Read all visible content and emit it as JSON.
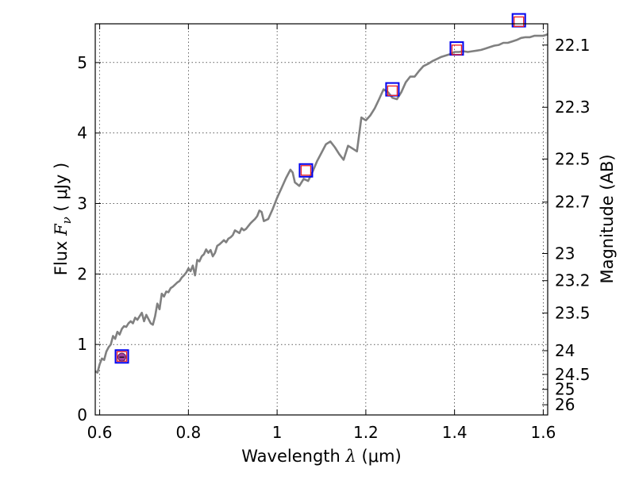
{
  "chart_data": {
    "type": "line",
    "xlabel": {
      "prefix": "Wavelength  ",
      "symbol": "λ",
      "suffix": " (μm)"
    },
    "ylabel": {
      "prefix": "Flux  ",
      "symbol": "F",
      "subscript": "ν",
      "suffix": "  ( μJy )"
    },
    "y2label": "Magnitude (AB)",
    "xlim": [
      0.59,
      1.61
    ],
    "ylim": [
      0,
      5.55
    ],
    "grid": true,
    "x_ticks": [
      {
        "value": 0.6,
        "label": "0.6"
      },
      {
        "value": 0.8,
        "label": "0.8"
      },
      {
        "value": 1.0,
        "label": "1"
      },
      {
        "value": 1.2,
        "label": "1.2"
      },
      {
        "value": 1.4,
        "label": "1.4"
      },
      {
        "value": 1.6,
        "label": "1.6"
      }
    ],
    "y_ticks": [
      {
        "value": 0,
        "label": "0"
      },
      {
        "value": 1,
        "label": "1"
      },
      {
        "value": 2,
        "label": "2"
      },
      {
        "value": 3,
        "label": "3"
      },
      {
        "value": 4,
        "label": "4"
      },
      {
        "value": 5,
        "label": "5"
      }
    ],
    "magnitude_ticks": [
      {
        "value": 22.1,
        "label": "22.1"
      },
      {
        "value": 22.3,
        "label": "22.3"
      },
      {
        "value": 22.5,
        "label": "22.5"
      },
      {
        "value": 22.7,
        "label": "22.7"
      },
      {
        "value": 23.0,
        "label": "23"
      },
      {
        "value": 23.2,
        "label": "23.2"
      },
      {
        "value": 23.5,
        "label": "23.5"
      },
      {
        "value": 24.0,
        "label": "24"
      },
      {
        "value": 24.5,
        "label": "24.5"
      },
      {
        "value": 25.0,
        "label": "25"
      },
      {
        "value": 26.0,
        "label": "26"
      }
    ],
    "series": [
      {
        "type": "line",
        "color": "#808080",
        "x": [
          0.59,
          0.595,
          0.6,
          0.605,
          0.61,
          0.615,
          0.62,
          0.625,
          0.63,
          0.635,
          0.64,
          0.645,
          0.65,
          0.655,
          0.66,
          0.665,
          0.67,
          0.675,
          0.68,
          0.685,
          0.69,
          0.695,
          0.7,
          0.705,
          0.71,
          0.715,
          0.72,
          0.725,
          0.73,
          0.735,
          0.74,
          0.745,
          0.75,
          0.755,
          0.76,
          0.765,
          0.77,
          0.775,
          0.78,
          0.785,
          0.79,
          0.795,
          0.8,
          0.805,
          0.81,
          0.815,
          0.82,
          0.825,
          0.83,
          0.835,
          0.84,
          0.845,
          0.85,
          0.855,
          0.86,
          0.865,
          0.87,
          0.875,
          0.88,
          0.885,
          0.89,
          0.895,
          0.9,
          0.905,
          0.91,
          0.915,
          0.92,
          0.925,
          0.93,
          0.935,
          0.94,
          0.945,
          0.95,
          0.955,
          0.96,
          0.965,
          0.97,
          0.98,
          0.99,
          1.0,
          1.01,
          1.02,
          1.03,
          1.035,
          1.04,
          1.05,
          1.06,
          1.07,
          1.08,
          1.09,
          1.1,
          1.11,
          1.12,
          1.13,
          1.14,
          1.15,
          1.16,
          1.17,
          1.18,
          1.19,
          1.2,
          1.21,
          1.22,
          1.23,
          1.24,
          1.25,
          1.26,
          1.27,
          1.28,
          1.29,
          1.3,
          1.31,
          1.32,
          1.33,
          1.34,
          1.35,
          1.36,
          1.37,
          1.38,
          1.39,
          1.4,
          1.41,
          1.42,
          1.43,
          1.44,
          1.45,
          1.46,
          1.47,
          1.48,
          1.49,
          1.5,
          1.51,
          1.52,
          1.53,
          1.54,
          1.55,
          1.56,
          1.57,
          1.58,
          1.59,
          1.6,
          1.61
        ],
        "y": [
          0.62,
          0.6,
          0.72,
          0.8,
          0.78,
          0.9,
          0.96,
          1.0,
          1.12,
          1.08,
          1.18,
          1.14,
          1.22,
          1.26,
          1.25,
          1.3,
          1.33,
          1.3,
          1.38,
          1.35,
          1.4,
          1.45,
          1.33,
          1.42,
          1.36,
          1.3,
          1.28,
          1.4,
          1.58,
          1.5,
          1.72,
          1.68,
          1.75,
          1.74,
          1.8,
          1.82,
          1.85,
          1.88,
          1.9,
          1.95,
          1.98,
          2.02,
          2.08,
          2.04,
          2.12,
          1.98,
          2.2,
          2.18,
          2.25,
          2.28,
          2.35,
          2.3,
          2.34,
          2.25,
          2.3,
          2.4,
          2.42,
          2.45,
          2.48,
          2.45,
          2.5,
          2.52,
          2.55,
          2.62,
          2.6,
          2.58,
          2.65,
          2.62,
          2.64,
          2.68,
          2.72,
          2.75,
          2.78,
          2.82,
          2.9,
          2.88,
          2.75,
          2.78,
          2.92,
          3.08,
          3.22,
          3.36,
          3.48,
          3.44,
          3.3,
          3.25,
          3.35,
          3.32,
          3.45,
          3.6,
          3.72,
          3.84,
          3.88,
          3.8,
          3.7,
          3.62,
          3.82,
          3.78,
          3.74,
          4.22,
          4.18,
          4.25,
          4.35,
          4.48,
          4.62,
          4.58,
          4.5,
          4.48,
          4.58,
          4.72,
          4.8,
          4.8,
          4.88,
          4.95,
          4.98,
          5.02,
          5.05,
          5.08,
          5.1,
          5.12,
          5.15,
          5.15,
          5.16,
          5.15,
          5.16,
          5.17,
          5.18,
          5.2,
          5.22,
          5.24,
          5.25,
          5.28,
          5.28,
          5.3,
          5.32,
          5.35,
          5.36,
          5.36,
          5.38,
          5.38,
          5.38,
          5.4
        ]
      },
      {
        "type": "scatter",
        "name": "open-squares-blue",
        "marker": "square-open",
        "color": "#0000ee",
        "x": [
          0.65,
          1.065,
          1.26,
          1.405,
          1.545
        ],
        "y": [
          0.83,
          3.47,
          4.62,
          5.2,
          5.6
        ]
      },
      {
        "type": "scatter",
        "name": "open-squares-red",
        "marker": "square-open-small",
        "color": "#ee2222",
        "x": [
          0.65,
          1.065,
          1.26,
          1.405,
          1.545
        ],
        "y": [
          0.83,
          3.47,
          4.6,
          5.18,
          5.58
        ]
      },
      {
        "type": "scatter",
        "name": "observed-point",
        "marker": "circle-filled",
        "color": "#a040a0",
        "x": [
          0.65
        ],
        "y": [
          0.82
        ],
        "yerr": [
          0.03
        ]
      }
    ]
  }
}
